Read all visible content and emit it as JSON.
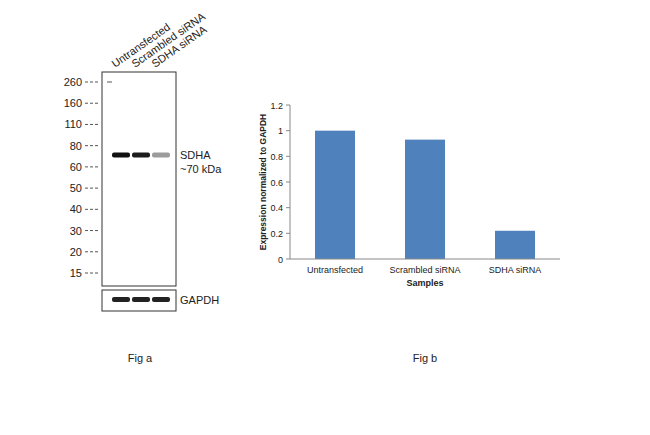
{
  "chart_data": {
    "type": "bar",
    "categories": [
      "Untransfected",
      "Scrambled siRNA",
      "SDHA siRNA"
    ],
    "values": [
      1,
      0.93,
      0.22
    ],
    "color": "#4f81bd",
    "ylim": [
      0,
      1.2
    ],
    "yticks": [
      0,
      0.2,
      0.4,
      0.6,
      0.8,
      1,
      1.2
    ],
    "xlabel": "Samples",
    "ylabel": "Expression normalized to GAPDH",
    "grid": false,
    "caption": "Fig b"
  },
  "blot": {
    "lanes": [
      "Untransfected",
      "Scrambled siRNA",
      "SDHA siRNA"
    ],
    "markers": [
      260,
      160,
      110,
      80,
      60,
      50,
      40,
      30,
      20,
      15
    ],
    "band_kda": 70,
    "target_label": "SDHA",
    "target_size": "~70 kDa",
    "loading_control": "GAPDH",
    "caption": "Fig a"
  }
}
